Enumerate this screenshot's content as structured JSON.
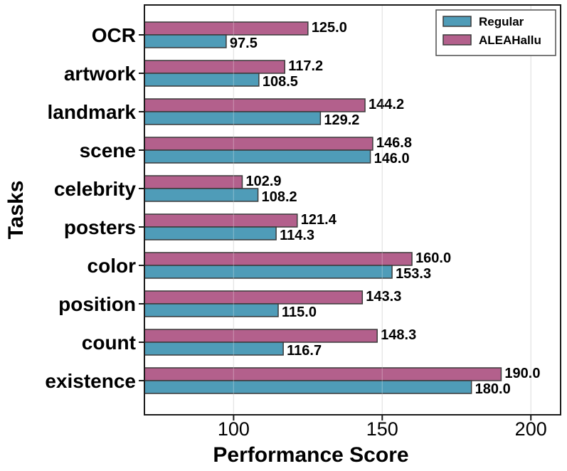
{
  "chart_data": {
    "type": "bar",
    "orientation": "horizontal",
    "title": "",
    "xlabel": "Performance Score",
    "ylabel": "Tasks",
    "categories": [
      "OCR",
      "artwork",
      "landmark",
      "scene",
      "celebrity",
      "posters",
      "color",
      "position",
      "count",
      "existence"
    ],
    "series": [
      {
        "name": "Regular",
        "color": "#4F9CB8",
        "values": [
          97.5,
          108.5,
          129.2,
          146.0,
          108.2,
          114.3,
          153.3,
          115.0,
          116.7,
          180.0
        ]
      },
      {
        "name": "ALEAHallu",
        "color": "#B3608C",
        "values": [
          125.0,
          117.2,
          144.2,
          146.8,
          102.9,
          121.4,
          160.0,
          143.3,
          148.3,
          190.0
        ]
      }
    ],
    "bar_on_top_of_pair": "ALEAHallu",
    "value_label_decimals": 1,
    "xlim": [
      70,
      210
    ],
    "xticks": [
      100,
      150,
      200
    ],
    "grid": true,
    "legend_position": "upper-right",
    "colors": {
      "bar_edge": "#3a3a3a",
      "gridline": "#dcdcdc",
      "spine": "#1a1a1a",
      "label_text": "#000000",
      "legend_border": "#4d4d4d",
      "background": "#ffffff"
    }
  }
}
